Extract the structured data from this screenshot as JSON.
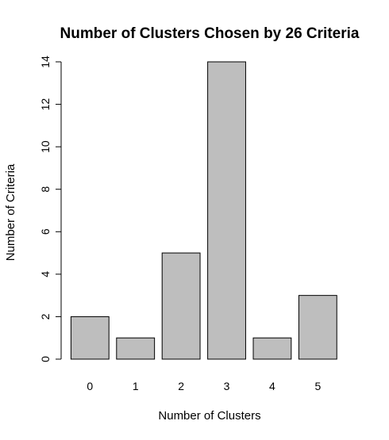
{
  "chart_data": {
    "type": "bar",
    "title": "Number of Clusters Chosen by 26 Criteria",
    "xlabel": "Number of Clusters",
    "ylabel": "Number of Criteria",
    "categories": [
      "0",
      "1",
      "2",
      "3",
      "4",
      "5"
    ],
    "values": [
      2,
      1,
      5,
      14,
      1,
      3
    ],
    "ylim": [
      0,
      14
    ],
    "yticks": [
      0,
      2,
      4,
      6,
      8,
      10,
      12,
      14
    ],
    "grid": false,
    "colors": {
      "bar_fill": "#bebebe",
      "bar_stroke": "#000000"
    }
  }
}
